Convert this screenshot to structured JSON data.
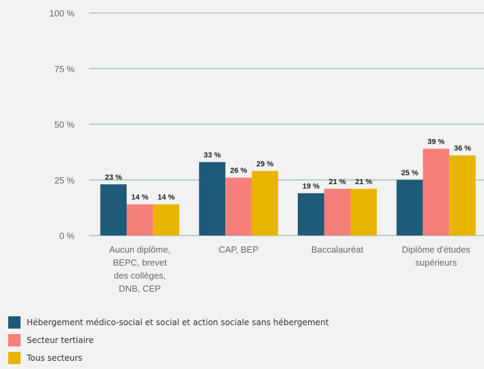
{
  "chart_data": {
    "type": "bar",
    "categories": [
      [
        "Aucun diplôme,",
        "BEPC, brevet",
        "des collèges,",
        "DNB, CEP"
      ],
      [
        "CAP, BEP"
      ],
      [
        "Baccalauréat"
      ],
      [
        "Diplôme d'études",
        "supérieurs"
      ]
    ],
    "series": [
      {
        "name": "Hébergement médico-social et social et action sociale sans hébergement",
        "color": "#1f5a78",
        "values": [
          23,
          33,
          19,
          25
        ]
      },
      {
        "name": "Secteur tertiaire",
        "color": "#f77f7a",
        "values": [
          14,
          26,
          21,
          39
        ]
      },
      {
        "name": "Tous secteurs",
        "color": "#e8b400",
        "values": [
          14,
          29,
          21,
          36
        ]
      }
    ],
    "value_suffix": " %",
    "ylim": [
      0,
      100
    ],
    "yticks": [
      {
        "value": 0,
        "label": "0 %"
      },
      {
        "value": 25,
        "label": "25 %"
      },
      {
        "value": 50,
        "label": "50 %"
      },
      {
        "value": 75,
        "label": "75 %"
      },
      {
        "value": 100,
        "label": "100 %"
      }
    ],
    "grid": true,
    "legend_position": "bottom-left"
  }
}
